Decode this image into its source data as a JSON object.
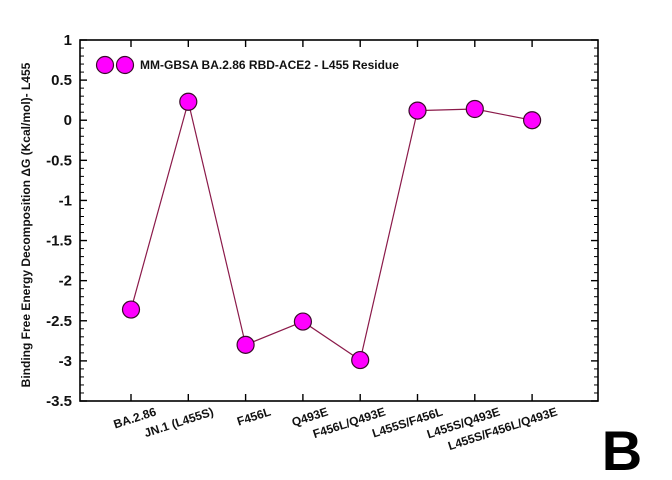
{
  "panel_label": "B",
  "chart_data": {
    "type": "line",
    "title": "",
    "xlabel": "",
    "ylabel": "Binding Free Energy Decomposition ΔG (Kcal/mol)- L455",
    "ylim": [
      -3.5,
      1
    ],
    "yticks": [
      "1",
      "0.5",
      "0",
      "-0.5",
      "-1",
      "-1.5",
      "-2",
      "-2.5",
      "-3",
      "-3.5"
    ],
    "grid": false,
    "legend_position": "top-left",
    "categories": [
      "BA.2.86",
      "JN.1 (L455S)",
      "F456L",
      "Q493E",
      "F456L/Q493E",
      "L455S/F456L",
      "L455S/Q493E",
      "L455S/F456L/Q493E"
    ],
    "series": [
      {
        "name": "MM-GBSA BA.2.86 RBD-ACE2 -  L455 Residue",
        "values": [
          -2.36,
          0.23,
          -2.8,
          -2.51,
          -2.99,
          0.12,
          0.14,
          0.0
        ],
        "marker_color": "#ff00ff",
        "line_color": "#8b1a4a"
      }
    ]
  }
}
